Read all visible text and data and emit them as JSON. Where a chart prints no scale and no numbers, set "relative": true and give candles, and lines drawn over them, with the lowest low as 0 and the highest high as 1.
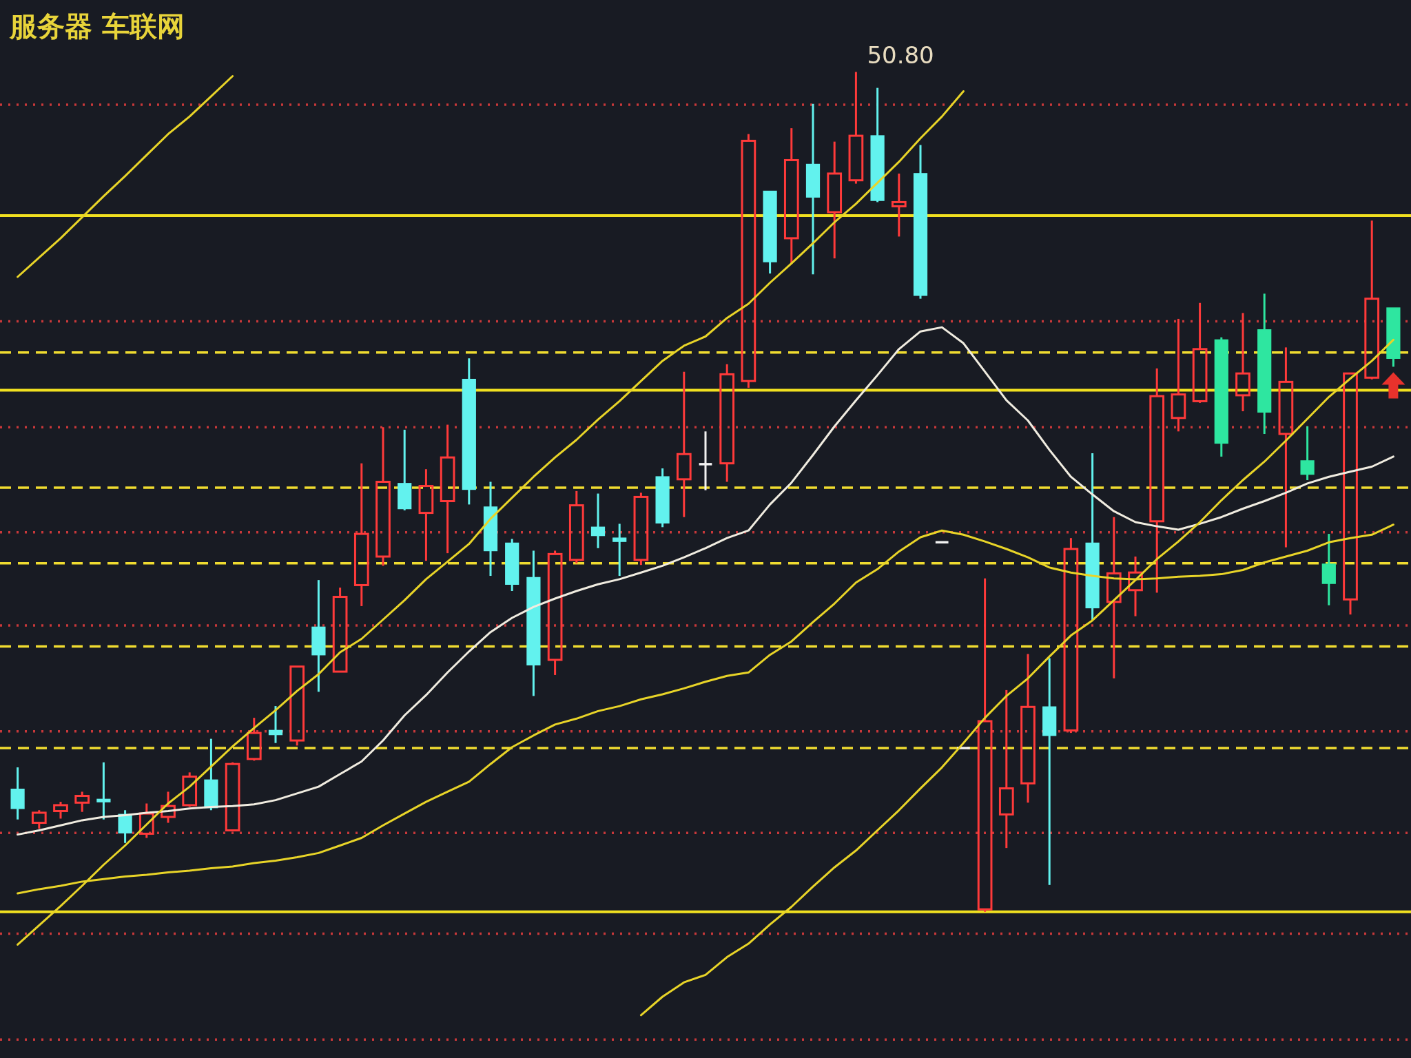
{
  "chart_data": {
    "type": "candlestick",
    "relative": true,
    "categories": [
      null,
      null,
      null,
      null,
      null,
      null,
      null,
      null,
      null,
      null,
      null,
      null,
      null,
      null,
      null,
      null,
      null,
      null,
      null,
      null,
      null,
      null,
      null,
      null,
      null,
      null,
      null,
      null,
      null,
      null,
      null,
      null,
      null,
      null,
      null,
      null,
      null,
      null,
      null,
      null,
      null,
      null,
      null,
      null,
      null,
      null,
      null,
      null,
      null,
      null,
      null,
      null,
      null,
      null,
      null,
      null,
      null,
      null,
      null,
      null,
      null,
      null,
      null,
      null,
      null
    ],
    "ohlc": [
      [
        0.146,
        0.172,
        0.11,
        0.123
      ],
      [
        0.106,
        0.121,
        0.099,
        0.118
      ],
      [
        0.12,
        0.131,
        0.111,
        0.127
      ],
      [
        0.13,
        0.143,
        0.119,
        0.138
      ],
      [
        0.134,
        0.178,
        0.11,
        0.131
      ],
      [
        0.116,
        0.121,
        0.082,
        0.094
      ],
      [
        0.093,
        0.129,
        0.088,
        0.117
      ],
      [
        0.113,
        0.143,
        0.106,
        0.126
      ],
      [
        0.127,
        0.166,
        0.125,
        0.161
      ],
      [
        0.157,
        0.206,
        0.121,
        0.124
      ],
      [
        0.097,
        0.178,
        0.096,
        0.176
      ],
      [
        0.182,
        0.231,
        0.18,
        0.213
      ],
      [
        0.216,
        0.245,
        0.201,
        0.211
      ],
      [
        0.204,
        0.292,
        0.198,
        0.292
      ],
      [
        0.339,
        0.395,
        0.262,
        0.306
      ],
      [
        0.286,
        0.386,
        0.285,
        0.375
      ],
      [
        0.389,
        0.534,
        0.364,
        0.45
      ],
      [
        0.423,
        0.577,
        0.412,
        0.512
      ],
      [
        0.51,
        0.574,
        0.478,
        0.48
      ],
      [
        0.475,
        0.527,
        0.418,
        0.507
      ],
      [
        0.489,
        0.58,
        0.427,
        0.541
      ],
      [
        0.634,
        0.659,
        0.485,
        0.503
      ],
      [
        0.482,
        0.512,
        0.4,
        0.43
      ],
      [
        0.439,
        0.444,
        0.382,
        0.39
      ],
      [
        0.398,
        0.43,
        0.257,
        0.294
      ],
      [
        0.3,
        0.43,
        0.282,
        0.426
      ],
      [
        0.419,
        0.501,
        0.415,
        0.484
      ],
      [
        0.458,
        0.498,
        0.433,
        0.448
      ],
      [
        0.445,
        0.462,
        0.4,
        0.441
      ],
      [
        0.419,
        0.499,
        0.413,
        0.494
      ],
      [
        0.518,
        0.528,
        0.458,
        0.463
      ],
      [
        0.515,
        0.643,
        0.47,
        0.545
      ],
      [
        0.533,
        0.572,
        0.502,
        0.533
      ],
      [
        0.534,
        0.652,
        0.512,
        0.64
      ],
      [
        0.632,
        0.926,
        0.624,
        0.918
      ],
      [
        0.858,
        0.858,
        0.76,
        0.774
      ],
      [
        0.802,
        0.933,
        0.772,
        0.895
      ],
      [
        0.89,
        0.962,
        0.759,
        0.851
      ],
      [
        0.833,
        0.917,
        0.778,
        0.879
      ],
      [
        0.871,
        1.0,
        0.867,
        0.924
      ],
      [
        0.924,
        0.981,
        0.845,
        0.847
      ],
      [
        0.84,
        0.879,
        0.804,
        0.845
      ],
      [
        0.879,
        0.913,
        0.73,
        0.734
      ],
      [
        0.44,
        0.44,
        0.44,
        0.44
      ],
      [
        0.195,
        0.195,
        0.195,
        0.195
      ],
      [
        0.003,
        0.397,
        0.0,
        0.227
      ],
      [
        0.116,
        0.264,
        0.076,
        0.147
      ],
      [
        0.153,
        0.307,
        0.13,
        0.244
      ],
      [
        0.244,
        0.302,
        0.032,
        0.21
      ],
      [
        0.216,
        0.445,
        0.213,
        0.432
      ],
      [
        0.439,
        0.546,
        0.347,
        0.362
      ],
      [
        0.369,
        0.47,
        0.278,
        0.403
      ],
      [
        0.383,
        0.423,
        0.352,
        0.404
      ],
      [
        0.465,
        0.647,
        0.38,
        0.614
      ],
      [
        0.588,
        0.706,
        0.572,
        0.616
      ],
      [
        0.608,
        0.725,
        0.606,
        0.67
      ],
      [
        0.681,
        0.684,
        0.542,
        0.558
      ],
      [
        0.615,
        0.713,
        0.596,
        0.641
      ],
      [
        0.693,
        0.736,
        0.569,
        0.595
      ],
      [
        0.569,
        0.672,
        0.434,
        0.631
      ],
      [
        0.537,
        0.578,
        0.514,
        0.521
      ],
      [
        0.414,
        0.45,
        0.365,
        0.391
      ],
      [
        0.372,
        0.642,
        0.354,
        0.641
      ],
      [
        0.636,
        0.823,
        0.634,
        0.73
      ],
      [
        0.719,
        0.719,
        0.649,
        0.659
      ]
    ],
    "colors": [
      "#62f2ee",
      "#ff3a3a",
      "#ff3a3a",
      "#ff3a3a",
      "#62f2ee",
      "#62f2ee",
      "#ff3a3a",
      "#ff3a3a",
      "#ff3a3a",
      "#62f2ee",
      "#ff3a3a",
      "#ff3a3a",
      "#62f2ee",
      "#ff3a3a",
      "#62f2ee",
      "#ff3a3a",
      "#ff3a3a",
      "#ff3a3a",
      "#62f2ee",
      "#ff3a3a",
      "#ff3a3a",
      "#62f2ee",
      "#62f2ee",
      "#62f2ee",
      "#62f2ee",
      "#ff3a3a",
      "#ff3a3a",
      "#62f2ee",
      "#62f2ee",
      "#ff3a3a",
      "#62f2ee",
      "#ff3a3a",
      "#f2f2f2",
      "#ff3a3a",
      "#ff3a3a",
      "#62f2ee",
      "#ff3a3a",
      "#62f2ee",
      "#ff3a3a",
      "#ff3a3a",
      "#62f2ee",
      "#ff3a3a",
      "#62f2ee",
      "#f2f2f2",
      "#f2f2f2",
      "#ff3a3a",
      "#ff3a3a",
      "#ff3a3a",
      "#62f2ee",
      "#ff3a3a",
      "#62f2ee",
      "#ff3a3a",
      "#ff3a3a",
      "#ff3a3a",
      "#ff3a3a",
      "#ff3a3a",
      "#2ee6a0",
      "#ff3a3a",
      "#2ee6a0",
      "#ff3a3a",
      "#2ee6a0",
      "#2ee6a0",
      "#ff3a3a",
      "#ff3a3a",
      "#2ee6a0"
    ],
    "series": [
      {
        "type": "line",
        "color": "#f0ece0",
        "values": [
          0.092,
          0.097,
          0.103,
          0.109,
          0.113,
          0.115,
          0.118,
          0.12,
          0.123,
          0.125,
          0.126,
          0.128,
          0.133,
          0.141,
          0.149,
          0.164,
          0.179,
          0.204,
          0.234,
          0.258,
          0.285,
          0.31,
          0.333,
          0.35,
          0.363,
          0.373,
          0.382,
          0.39,
          0.396,
          0.404,
          0.412,
          0.422,
          0.433,
          0.445,
          0.454,
          0.485,
          0.511,
          0.544,
          0.578,
          0.609,
          0.639,
          0.67,
          0.691,
          0.696,
          0.677,
          0.643,
          0.609,
          0.585,
          0.55,
          0.518,
          0.497,
          0.477,
          0.464,
          0.459,
          0.455,
          0.462,
          0.47,
          0.48,
          0.489,
          0.499,
          0.51,
          0.518,
          0.524,
          0.53,
          0.542
        ]
      },
      {
        "type": "line",
        "color": "#e8d428",
        "values": [
          0.022,
          0.027,
          0.031,
          0.036,
          0.039,
          0.042,
          0.044,
          0.047,
          0.049,
          0.052,
          0.054,
          0.058,
          0.061,
          0.065,
          0.07,
          0.079,
          0.088,
          0.103,
          0.117,
          0.131,
          0.143,
          0.155,
          0.176,
          0.196,
          0.21,
          0.223,
          0.23,
          0.239,
          0.245,
          0.253,
          0.259,
          0.266,
          0.274,
          0.281,
          0.285,
          0.306,
          0.322,
          0.345,
          0.367,
          0.392,
          0.408,
          0.429,
          0.446,
          0.454,
          0.449,
          0.441,
          0.432,
          0.422,
          0.41,
          0.404,
          0.4,
          0.397,
          0.396,
          0.397,
          0.399,
          0.4,
          0.402,
          0.407,
          0.416,
          0.423,
          0.43,
          0.44,
          0.445,
          0.449,
          0.461
        ]
      },
      {
        "type": "line",
        "color": "#e8d428",
        "values": [
          0.756,
          0.779,
          0.802,
          0.827,
          0.852,
          0.876,
          0.901,
          0.926,
          0.947,
          0.971,
          0.995,
          null,
          null,
          null,
          null,
          null,
          null,
          null,
          null,
          null,
          null,
          null,
          null,
          null,
          null,
          null,
          null,
          null,
          null,
          null,
          null,
          null,
          null,
          null,
          null,
          null,
          null,
          null,
          null,
          null,
          null,
          null,
          null,
          null,
          null,
          null,
          null,
          null,
          null,
          null,
          null,
          null,
          null,
          null,
          null,
          null,
          null,
          null,
          null,
          null,
          null,
          null,
          null,
          null,
          null
        ]
      },
      {
        "type": "line",
        "color": "#e8d428",
        "values": [
          -0.039,
          -0.016,
          0.007,
          0.031,
          0.056,
          0.079,
          0.104,
          0.129,
          0.149,
          0.173,
          0.197,
          0.219,
          0.24,
          0.263,
          0.283,
          0.309,
          0.325,
          0.348,
          0.371,
          0.396,
          0.417,
          0.438,
          0.468,
          0.493,
          0.518,
          0.541,
          0.562,
          0.586,
          0.608,
          0.632,
          0.656,
          0.674,
          0.685,
          0.707,
          0.724,
          0.749,
          0.772,
          0.796,
          0.821,
          0.843,
          0.868,
          0.893,
          0.921,
          0.947,
          0.977,
          null,
          null,
          null,
          null,
          null,
          null,
          null,
          null,
          null,
          null,
          null,
          null,
          null,
          null,
          null,
          null,
          null,
          null,
          null,
          null
        ]
      },
      {
        "type": "line",
        "color": "#e8d428",
        "values": [
          null,
          null,
          null,
          null,
          null,
          null,
          null,
          null,
          null,
          null,
          null,
          null,
          null,
          null,
          null,
          null,
          null,
          null,
          null,
          null,
          null,
          null,
          null,
          null,
          null,
          null,
          null,
          null,
          null,
          -0.123,
          -0.101,
          -0.084,
          -0.075,
          -0.054,
          -0.038,
          -0.015,
          0.006,
          0.03,
          0.053,
          0.073,
          0.097,
          0.121,
          0.147,
          0.172,
          0.201,
          0.231,
          0.257,
          0.278,
          0.304,
          0.329,
          0.347,
          0.371,
          0.395,
          0.42,
          0.441,
          0.464,
          0.49,
          0.514,
          0.536,
          0.561,
          0.587,
          0.613,
          0.635,
          0.656,
          0.681
        ]
      }
    ],
    "ref_lines": [
      {
        "axis": "y",
        "value": 0.961,
        "color": "#c8383a",
        "line_style": "dotted"
      },
      {
        "axis": "y",
        "value": 0.703,
        "color": "#c8383a",
        "line_style": "dotted"
      },
      {
        "axis": "y",
        "value": 0.577,
        "color": "#c8383a",
        "line_style": "dotted"
      },
      {
        "axis": "y",
        "value": 0.452,
        "color": "#c8383a",
        "line_style": "dotted"
      },
      {
        "axis": "y",
        "value": 0.341,
        "color": "#c8383a",
        "line_style": "dotted"
      },
      {
        "axis": "y",
        "value": 0.215,
        "color": "#c8383a",
        "line_style": "dotted"
      },
      {
        "axis": "y",
        "value": 0.094,
        "color": "#c8383a",
        "line_style": "dotted"
      },
      {
        "axis": "y",
        "value": -0.026,
        "color": "#c8383a",
        "line_style": "dotted"
      },
      {
        "axis": "y",
        "value": -0.152,
        "color": "#c8383a",
        "line_style": "dotted"
      },
      {
        "axis": "y",
        "value": 0.666,
        "color": "#f0dc30",
        "line_style": "dashed"
      },
      {
        "axis": "y",
        "value": 0.505,
        "color": "#f0dc30",
        "line_style": "dashed"
      },
      {
        "axis": "y",
        "value": 0.415,
        "color": "#f0dc30",
        "line_style": "dashed"
      },
      {
        "axis": "y",
        "value": 0.316,
        "color": "#f0dc30",
        "line_style": "dashed"
      },
      {
        "axis": "y",
        "value": 0.195,
        "color": "#f0dc30",
        "line_style": "dashed"
      },
      {
        "axis": "y",
        "value": 0.829,
        "color": "#f0e020",
        "line_style": "solid"
      },
      {
        "axis": "y",
        "value": 0.621,
        "color": "#f0e020",
        "line_style": "solid"
      },
      {
        "axis": "y",
        "value": 0,
        "color": "#f0e020",
        "line_style": "solid"
      }
    ],
    "annotations": [
      "服务器 车联网",
      "50.80"
    ]
  }
}
